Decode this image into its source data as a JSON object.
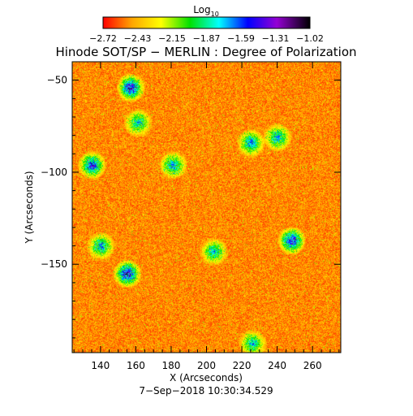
{
  "chart_data": {
    "type": "heatmap",
    "title": "Hinode SOT/SP − MERLIN : Degree of Polarization",
    "xlabel": "X (Arcseconds)",
    "ylabel": "Y (Arcseconds)",
    "footer": "7−Sep−2018 10:30:34.529",
    "x_ticks": [
      140,
      160,
      180,
      200,
      220,
      240,
      260
    ],
    "y_ticks": [
      -50,
      -100,
      -150
    ],
    "xlim": [
      124,
      276
    ],
    "ylim": [
      -198,
      -40
    ],
    "colorbar": {
      "title_base": "Log",
      "title_sub": "10",
      "range": [
        -2.72,
        -1.02
      ],
      "tick_labels": [
        "−2.72",
        "−2.43",
        "−2.15",
        "−1.87",
        "−1.59",
        "−1.31",
        "−1.02"
      ],
      "colors": [
        "#ff0000",
        "#ffa500",
        "#ffff00",
        "#00e000",
        "#00ffff",
        "#0000ff",
        "#9400d3",
        "#000000"
      ]
    },
    "strong_regions": [
      {
        "x": 157,
        "y": -54,
        "level": 0.85
      },
      {
        "x": 155,
        "y": -155,
        "level": 0.85
      },
      {
        "x": 135,
        "y": -96,
        "level": 0.75
      },
      {
        "x": 248,
        "y": -137,
        "level": 0.8
      },
      {
        "x": 225,
        "y": -84,
        "level": 0.65
      },
      {
        "x": 240,
        "y": -81,
        "level": 0.6
      },
      {
        "x": 181,
        "y": -96,
        "level": 0.6
      },
      {
        "x": 204,
        "y": -143,
        "level": 0.55
      },
      {
        "x": 161,
        "y": -73,
        "level": 0.55
      },
      {
        "x": 140,
        "y": -140,
        "level": 0.6
      },
      {
        "x": 226,
        "y": -193,
        "level": 0.55
      }
    ]
  }
}
